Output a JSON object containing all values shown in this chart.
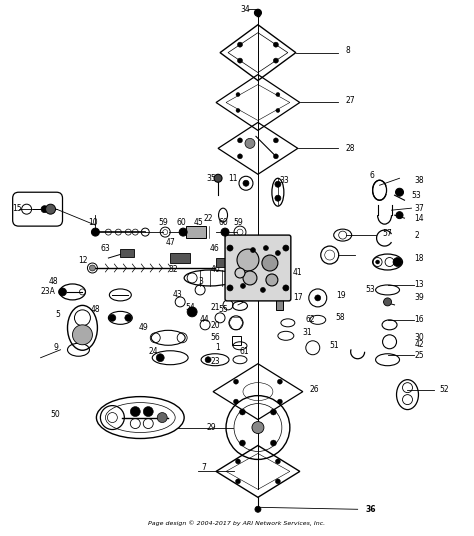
{
  "bg_color": "#ffffff",
  "footer": "Page design © 2004-2017 by ARI Network Services, Inc.",
  "footer_num": "36",
  "figsize": [
    4.74,
    5.36
  ],
  "dpi": 100
}
